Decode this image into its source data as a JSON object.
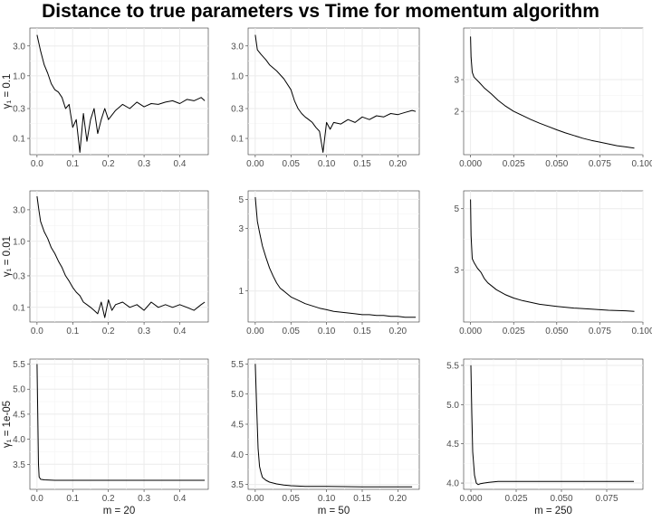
{
  "chart_data": {
    "type": "line",
    "title": "Distance to true parameters vs Time for momentum algorithm",
    "col_labels": [
      "m = 20",
      "m = 50",
      "m = 250"
    ],
    "row_labels": [
      "γ₁ = 0.1",
      "γ₁ = 0.01",
      "γ₁ = 1e-05"
    ],
    "panels": [
      {
        "row": 0,
        "col": 0,
        "yscale": "log",
        "xlim": [
          -0.02,
          0.48
        ],
        "ylim": [
          0.055,
          5.8
        ],
        "xticks": [
          0.0,
          0.1,
          0.2,
          0.3,
          0.4
        ],
        "xtick_labels": [
          "0.0",
          "0.1",
          "0.2",
          "0.3",
          "0.4"
        ],
        "yticks": [
          0.1,
          0.3,
          1.0,
          3.0
        ],
        "ytick_labels": [
          "0.1",
          "0.3",
          "1.0",
          "3.0"
        ],
        "x": [
          0.0,
          0.01,
          0.02,
          0.03,
          0.04,
          0.05,
          0.06,
          0.07,
          0.08,
          0.09,
          0.1,
          0.11,
          0.12,
          0.13,
          0.14,
          0.15,
          0.16,
          0.17,
          0.18,
          0.19,
          0.2,
          0.22,
          0.24,
          0.26,
          0.28,
          0.3,
          0.32,
          0.34,
          0.36,
          0.38,
          0.4,
          0.42,
          0.44,
          0.46,
          0.47
        ],
        "y": [
          4.5,
          2.5,
          1.5,
          1.1,
          0.75,
          0.6,
          0.55,
          0.45,
          0.3,
          0.35,
          0.15,
          0.2,
          0.06,
          0.25,
          0.09,
          0.2,
          0.3,
          0.12,
          0.2,
          0.3,
          0.2,
          0.28,
          0.35,
          0.3,
          0.38,
          0.32,
          0.36,
          0.35,
          0.38,
          0.4,
          0.36,
          0.42,
          0.4,
          0.45,
          0.4
        ]
      },
      {
        "row": 0,
        "col": 1,
        "yscale": "log",
        "xlim": [
          -0.01,
          0.23
        ],
        "ylim": [
          0.055,
          5.8
        ],
        "xticks": [
          0.0,
          0.05,
          0.1,
          0.15,
          0.2
        ],
        "xtick_labels": [
          "0.00",
          "0.05",
          "0.10",
          "0.15",
          "0.20"
        ],
        "yticks": [
          0.1,
          0.3,
          1.0,
          3.0
        ],
        "ytick_labels": [
          "0.1",
          "0.3",
          "1.0",
          "3.0"
        ],
        "x": [
          0.0,
          0.003,
          0.008,
          0.015,
          0.02,
          0.03,
          0.04,
          0.05,
          0.055,
          0.06,
          0.065,
          0.07,
          0.075,
          0.08,
          0.085,
          0.09,
          0.095,
          0.1,
          0.105,
          0.11,
          0.12,
          0.13,
          0.14,
          0.15,
          0.16,
          0.17,
          0.18,
          0.19,
          0.2,
          0.21,
          0.22,
          0.225
        ],
        "y": [
          4.5,
          2.6,
          2.2,
          1.8,
          1.5,
          1.2,
          0.9,
          0.6,
          0.4,
          0.3,
          0.25,
          0.22,
          0.2,
          0.18,
          0.15,
          0.13,
          0.06,
          0.18,
          0.14,
          0.18,
          0.17,
          0.2,
          0.18,
          0.22,
          0.2,
          0.23,
          0.22,
          0.25,
          0.24,
          0.26,
          0.28,
          0.27
        ]
      },
      {
        "row": 0,
        "col": 2,
        "yscale": "log",
        "xlim": [
          -0.004,
          0.1
        ],
        "ylim": [
          1.15,
          5.8
        ],
        "xticks": [
          0.0,
          0.025,
          0.05,
          0.075,
          0.1
        ],
        "xtick_labels": [
          "0.000",
          "0.025",
          "0.050",
          "0.075",
          "0.100"
        ],
        "yticks": [
          2,
          3
        ],
        "ytick_labels": [
          "2",
          "3"
        ],
        "x": [
          0.0,
          0.0003,
          0.001,
          0.002,
          0.005,
          0.008,
          0.012,
          0.016,
          0.02,
          0.025,
          0.03,
          0.035,
          0.04,
          0.045,
          0.05,
          0.055,
          0.06,
          0.065,
          0.07,
          0.075,
          0.08,
          0.085,
          0.09,
          0.095
        ],
        "y": [
          5.2,
          4.0,
          3.3,
          3.1,
          2.9,
          2.7,
          2.5,
          2.3,
          2.15,
          2.0,
          1.9,
          1.8,
          1.72,
          1.65,
          1.58,
          1.52,
          1.47,
          1.42,
          1.38,
          1.35,
          1.32,
          1.29,
          1.27,
          1.25
        ]
      },
      {
        "row": 1,
        "col": 0,
        "yscale": "log",
        "xlim": [
          -0.02,
          0.48
        ],
        "ylim": [
          0.06,
          5.8
        ],
        "xticks": [
          0.0,
          0.1,
          0.2,
          0.3,
          0.4
        ],
        "xtick_labels": [
          "0.0",
          "0.1",
          "0.2",
          "0.3",
          "0.4"
        ],
        "yticks": [
          0.1,
          0.3,
          1.0,
          3.0
        ],
        "ytick_labels": [
          "0.1",
          "0.3",
          "1.0",
          "3.0"
        ],
        "x": [
          0.0,
          0.005,
          0.01,
          0.02,
          0.03,
          0.04,
          0.05,
          0.06,
          0.07,
          0.08,
          0.09,
          0.1,
          0.11,
          0.12,
          0.13,
          0.14,
          0.15,
          0.16,
          0.17,
          0.18,
          0.19,
          0.2,
          0.21,
          0.22,
          0.24,
          0.26,
          0.28,
          0.3,
          0.32,
          0.34,
          0.36,
          0.38,
          0.4,
          0.42,
          0.44,
          0.46,
          0.47
        ],
        "y": [
          4.8,
          3.0,
          2.0,
          1.4,
          1.1,
          0.8,
          0.65,
          0.5,
          0.4,
          0.3,
          0.25,
          0.2,
          0.17,
          0.15,
          0.12,
          0.11,
          0.1,
          0.09,
          0.08,
          0.12,
          0.07,
          0.13,
          0.09,
          0.11,
          0.12,
          0.1,
          0.11,
          0.09,
          0.12,
          0.1,
          0.11,
          0.1,
          0.11,
          0.1,
          0.09,
          0.11,
          0.12
        ]
      },
      {
        "row": 1,
        "col": 1,
        "yscale": "log",
        "xlim": [
          -0.01,
          0.23
        ],
        "ylim": [
          0.58,
          5.8
        ],
        "xticks": [
          0.0,
          0.05,
          0.1,
          0.15,
          0.2
        ],
        "xtick_labels": [
          "0.00",
          "0.05",
          "0.10",
          "0.15",
          "0.20"
        ],
        "yticks": [
          1,
          3,
          5
        ],
        "ytick_labels": [
          "1",
          "3",
          "5"
        ],
        "x": [
          0.0,
          0.003,
          0.006,
          0.01,
          0.015,
          0.02,
          0.025,
          0.03,
          0.035,
          0.04,
          0.05,
          0.06,
          0.07,
          0.08,
          0.09,
          0.1,
          0.11,
          0.12,
          0.13,
          0.14,
          0.15,
          0.16,
          0.17,
          0.18,
          0.19,
          0.2,
          0.21,
          0.22,
          0.225
        ],
        "y": [
          5.2,
          3.4,
          2.8,
          2.2,
          1.8,
          1.5,
          1.3,
          1.15,
          1.05,
          1.0,
          0.9,
          0.85,
          0.8,
          0.77,
          0.74,
          0.72,
          0.7,
          0.69,
          0.68,
          0.67,
          0.66,
          0.66,
          0.65,
          0.65,
          0.64,
          0.64,
          0.63,
          0.63,
          0.63
        ]
      },
      {
        "row": 1,
        "col": 2,
        "yscale": "log",
        "xlim": [
          -0.004,
          0.1
        ],
        "ylim": [
          1.95,
          5.8
        ],
        "xticks": [
          0.0,
          0.025,
          0.05,
          0.075,
          0.1
        ],
        "xtick_labels": [
          "0.000",
          "0.025",
          "0.050",
          "0.075",
          "0.100"
        ],
        "yticks": [
          3,
          5
        ],
        "ytick_labels": [
          "3",
          "5"
        ],
        "x": [
          0.0,
          0.0003,
          0.001,
          0.002,
          0.004,
          0.006,
          0.008,
          0.01,
          0.015,
          0.02,
          0.025,
          0.03,
          0.04,
          0.05,
          0.06,
          0.07,
          0.08,
          0.09,
          0.095
        ],
        "y": [
          5.4,
          4.0,
          3.3,
          3.2,
          3.05,
          2.95,
          2.8,
          2.7,
          2.55,
          2.45,
          2.38,
          2.33,
          2.26,
          2.22,
          2.19,
          2.17,
          2.15,
          2.14,
          2.13
        ]
      },
      {
        "row": 2,
        "col": 0,
        "yscale": "linear",
        "xlim": [
          -0.02,
          0.48
        ],
        "ylim": [
          3.0,
          5.6
        ],
        "xticks": [
          0.0,
          0.1,
          0.2,
          0.3,
          0.4
        ],
        "xtick_labels": [
          "0.0",
          "0.1",
          "0.2",
          "0.3",
          "0.4"
        ],
        "yticks": [
          3.5,
          4.0,
          4.5,
          5.0,
          5.5
        ],
        "ytick_labels": [
          "3.5",
          "4.0",
          "4.5",
          "5.0",
          "5.5"
        ],
        "x": [
          0.0,
          0.002,
          0.004,
          0.006,
          0.01,
          0.02,
          0.05,
          0.1,
          0.2,
          0.3,
          0.4,
          0.47
        ],
        "y": [
          5.5,
          4.5,
          3.5,
          3.25,
          3.2,
          3.19,
          3.18,
          3.18,
          3.18,
          3.18,
          3.18,
          3.18
        ]
      },
      {
        "row": 2,
        "col": 1,
        "yscale": "linear",
        "xlim": [
          -0.01,
          0.23
        ],
        "ylim": [
          3.42,
          5.58
        ],
        "xticks": [
          0.0,
          0.05,
          0.1,
          0.15,
          0.2
        ],
        "xtick_labels": [
          "0.00",
          "0.05",
          "0.10",
          "0.15",
          "0.20"
        ],
        "yticks": [
          3.5,
          4.0,
          4.5,
          5.0,
          5.5
        ],
        "ytick_labels": [
          "3.5",
          "4.0",
          "4.5",
          "5.0",
          "5.5"
        ],
        "x": [
          0.0,
          0.002,
          0.004,
          0.006,
          0.008,
          0.01,
          0.015,
          0.02,
          0.03,
          0.04,
          0.05,
          0.07,
          0.1,
          0.15,
          0.2,
          0.22
        ],
        "y": [
          5.5,
          4.8,
          4.1,
          3.8,
          3.7,
          3.62,
          3.57,
          3.54,
          3.51,
          3.49,
          3.48,
          3.47,
          3.47,
          3.46,
          3.46,
          3.46
        ]
      },
      {
        "row": 2,
        "col": 2,
        "yscale": "linear",
        "xlim": [
          -0.004,
          0.095
        ],
        "ylim": [
          3.92,
          5.58
        ],
        "xticks": [
          0.0,
          0.025,
          0.05,
          0.075
        ],
        "xtick_labels": [
          "0.000",
          "0.025",
          "0.050",
          "0.075"
        ],
        "yticks": [
          4.0,
          4.5,
          5.0,
          5.5
        ],
        "ytick_labels": [
          "4.0",
          "4.5",
          "5.0",
          "5.5"
        ],
        "x": [
          0.0,
          0.0005,
          0.001,
          0.002,
          0.003,
          0.004,
          0.005,
          0.007,
          0.01,
          0.015,
          0.02,
          0.03,
          0.05,
          0.07,
          0.09
        ],
        "y": [
          5.5,
          4.9,
          4.4,
          4.1,
          4.0,
          3.98,
          3.99,
          4.0,
          4.01,
          4.02,
          4.02,
          4.02,
          4.02,
          4.02,
          4.02
        ]
      }
    ]
  }
}
